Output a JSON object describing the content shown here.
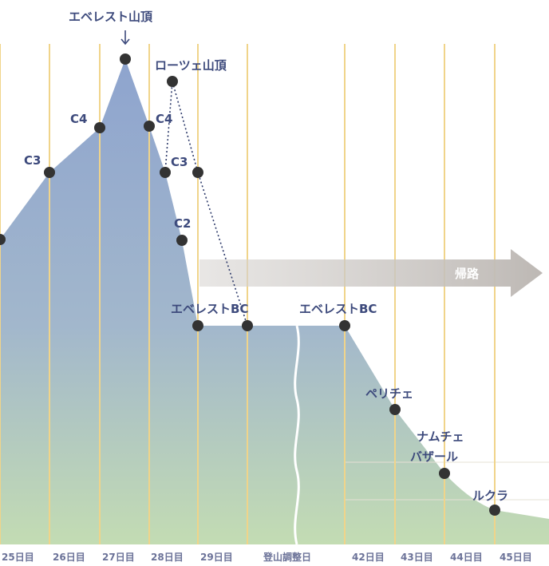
{
  "labels": {
    "everest_summit": "エベレスト山頂",
    "lhotse_summit": "ローツェ山頂",
    "c4_left": "C4",
    "c4_right": "C4",
    "c3_left": "C3",
    "c3_right": "C3",
    "c2": "C2",
    "everest_bc_1": "エベレストBC",
    "everest_bc_2": "エベレストBC",
    "periche": "ペリチェ",
    "namche_1": "ナムチェ",
    "namche_2": "バザール",
    "lukla": "ルクラ",
    "return": "帰路"
  },
  "days": [
    "25日目",
    "26日目",
    "27日目",
    "28日目",
    "29日目",
    "登山調整日",
    "42日目",
    "43日目",
    "44日目",
    "45日目"
  ],
  "colors": {
    "grid_line": "#f0d48a",
    "area_top": "#8fa6cf",
    "area_bottom": "#c2dcb4",
    "marker": "#333333",
    "label_text": "#3d4a7c",
    "arrow": "#c6c2bf"
  }
}
